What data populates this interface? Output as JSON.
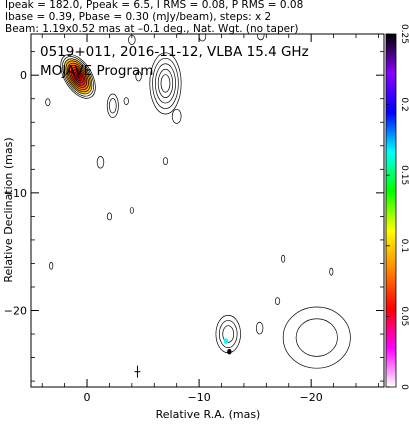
{
  "header": {
    "line1": "Ipeak = 182.0, Ppeak = 6.5, I RMS = 0.08, P RMS = 0.08",
    "line2": "Ibase = 0.39, Pbase = 0.30 (mJy/beam), steps: x 2",
    "line3": "Beam: 1.19x0.52 mas at –0.1 deg., Nat. Wgt. (no taper)"
  },
  "chart_data": {
    "type": "heatmap",
    "title": "0519+011, 2016-11-12, VLBA 15.4 GHz",
    "subtitle": "MOJAVE Program",
    "xlabel": "Relative R.A. (mas)",
    "ylabel": "Relative Declination (mas)",
    "xlim": [
      5.0,
      -26.5
    ],
    "ylim": [
      -26.5,
      3.5
    ],
    "x_ticks": [
      0,
      -10,
      -20
    ],
    "x_tick_labels": [
      "0",
      "−10",
      "−20"
    ],
    "y_ticks": [
      0,
      -10,
      -20
    ],
    "y_tick_labels": [
      "0",
      "−10",
      "−20"
    ],
    "colorbar": {
      "range": [
        0,
        0.25
      ],
      "ticks": [
        0,
        0.05,
        0.1,
        0.15,
        0.2,
        0.25
      ],
      "tick_labels": [
        "0",
        "0.05",
        "0.1",
        "0.15",
        "0.2",
        "0.25"
      ],
      "colors": [
        "#ffffff",
        "#ff00ff",
        "#ff0000",
        "#ff8800",
        "#ffff00",
        "#00ff00",
        "#00ffff",
        "#0000ff",
        "#8800ff",
        "#000000"
      ]
    },
    "beam": {
      "major_mas": 1.19,
      "minor_mas": 0.52,
      "pa_deg": -0.1,
      "x": -4.5,
      "y": -25.2
    },
    "contour_levels_mJy": [
      0.39,
      0.78,
      1.56,
      3.12,
      6.24,
      12.48,
      24.96,
      49.92,
      99.84
    ],
    "core": {
      "x": 0.8,
      "y": -0.1,
      "peak_mJy": 182.0
    },
    "features": [
      {
        "x": -7.0,
        "y": -0.7,
        "rx": 1.4,
        "ry": 2.6,
        "levels": 5
      },
      {
        "x": -12.6,
        "y": -22.0,
        "rx": 1.1,
        "ry": 1.6,
        "levels": 3
      },
      {
        "x": -20.5,
        "y": -22.3,
        "rx": 3.0,
        "ry": 2.6,
        "levels": 2
      },
      {
        "x": -2.3,
        "y": -2.6,
        "rx": 0.5,
        "ry": 1.0,
        "levels": 2
      },
      {
        "x": -1.2,
        "y": -7.4,
        "rx": 0.3,
        "ry": 0.5,
        "levels": 1
      },
      {
        "x": -4.0,
        "y": 3.0,
        "rx": 0.3,
        "ry": 0.4,
        "levels": 1
      },
      {
        "x": -10.3,
        "y": 3.3,
        "rx": 0.3,
        "ry": 0.4,
        "levels": 1
      },
      {
        "x": -15.5,
        "y": 3.4,
        "rx": 0.3,
        "ry": 0.4,
        "levels": 1
      },
      {
        "x": -4.6,
        "y": -0.1,
        "rx": 0.25,
        "ry": 0.4,
        "levels": 1
      },
      {
        "x": -3.5,
        "y": -2.2,
        "rx": 0.2,
        "ry": 0.3,
        "levels": 1
      },
      {
        "x": -8.0,
        "y": -3.5,
        "rx": 0.4,
        "ry": 0.6,
        "levels": 1
      },
      {
        "x": -2.0,
        "y": -12.0,
        "rx": 0.2,
        "ry": 0.3,
        "levels": 1
      },
      {
        "x": -7.0,
        "y": -7.3,
        "rx": 0.2,
        "ry": 0.3,
        "levels": 1
      },
      {
        "x": -4.0,
        "y": -11.5,
        "rx": 0.15,
        "ry": 0.25,
        "levels": 1
      },
      {
        "x": 3.5,
        "y": -2.3,
        "rx": 0.2,
        "ry": 0.3,
        "levels": 1
      },
      {
        "x": 3.2,
        "y": -16.2,
        "rx": 0.15,
        "ry": 0.3,
        "levels": 1
      },
      {
        "x": -17.5,
        "y": -15.6,
        "rx": 0.15,
        "ry": 0.3,
        "levels": 1
      },
      {
        "x": -21.8,
        "y": -16.7,
        "rx": 0.15,
        "ry": 0.3,
        "levels": 1
      },
      {
        "x": -17.0,
        "y": -19.2,
        "rx": 0.2,
        "ry": 0.3,
        "levels": 1
      },
      {
        "x": -15.4,
        "y": -21.5,
        "rx": 0.3,
        "ry": 0.5,
        "levels": 1
      }
    ],
    "color_blobs": [
      {
        "x": -12.4,
        "y": -22.6,
        "color": "#00ffff"
      },
      {
        "x": -12.7,
        "y": -23.5,
        "color": "#000000"
      }
    ]
  }
}
